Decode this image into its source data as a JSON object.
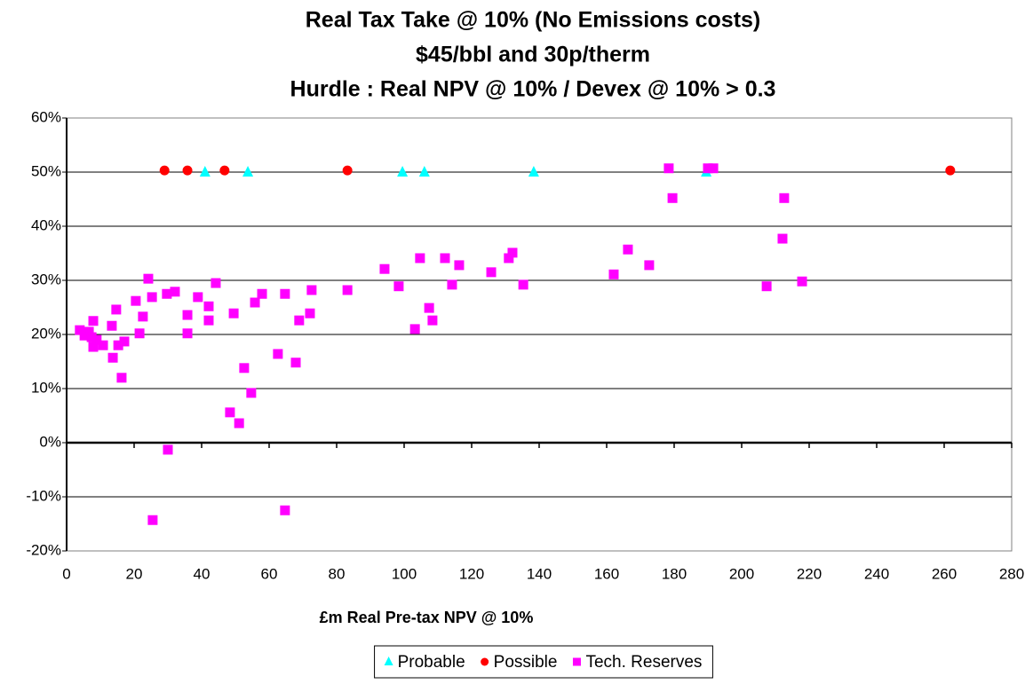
{
  "chart_data": {
    "type": "scatter",
    "title": [
      "Real Tax Take @ 10% (No Emissions costs)",
      "$45/bbl and 30p/therm",
      "Hurdle : Real NPV @ 10% / Devex @ 10% > 0.3"
    ],
    "x_label": "£m Real Pre-tax NPV @ 10%",
    "xlim": [
      0,
      280
    ],
    "xticks": [
      0,
      20,
      40,
      60,
      80,
      100,
      120,
      140,
      160,
      180,
      200,
      220,
      240,
      260,
      280
    ],
    "ylim": [
      -20,
      60
    ],
    "yticks": [
      {
        "value": -20,
        "label": "-20%"
      },
      {
        "value": -10,
        "label": "-10%"
      },
      {
        "value": 0,
        "label": "0%"
      },
      {
        "value": 10,
        "label": "10%"
      },
      {
        "value": 20,
        "label": "20%"
      },
      {
        "value": 30,
        "label": "30%"
      },
      {
        "value": 40,
        "label": "40%"
      },
      {
        "value": 50,
        "label": "50%"
      },
      {
        "value": 60,
        "label": "60%"
      }
    ],
    "grid": true,
    "legend": "bottom",
    "series": [
      {
        "name": "Probable",
        "color": "#00ffff",
        "marker": "triangle",
        "x": [
          41,
          53.7,
          99.5,
          106,
          138.4,
          189.5
        ],
        "values": [
          50,
          50,
          50,
          50,
          50,
          50
        ]
      },
      {
        "name": "Possible",
        "color": "#ff0000",
        "marker": "circle",
        "x": [
          29,
          35.8,
          46.8,
          83.2,
          261.8
        ],
        "values": [
          50.3,
          50.3,
          50.3,
          50.3,
          50.3
        ]
      },
      {
        "name": "Tech. Reserves",
        "color": "#ff00ff",
        "marker": "square",
        "x": [
          3.9,
          5.3,
          6.6,
          7.4,
          7.9,
          7.9,
          8.9,
          10.8,
          13.4,
          13.7,
          14.7,
          15.3,
          16.3,
          17.1,
          20.5,
          21.6,
          22.6,
          24.2,
          25.3,
          25.5,
          29.7,
          30,
          32.1,
          35.8,
          35.8,
          38.9,
          42.1,
          42.1,
          44.2,
          48.4,
          49.5,
          51.1,
          52.6,
          54.7,
          55.8,
          57.9,
          62.6,
          64.7,
          64.7,
          67.9,
          68.9,
          72.1,
          72.6,
          83.2,
          94.2,
          98.4,
          103.2,
          104.7,
          107.4,
          108.4,
          112.1,
          114.2,
          116.3,
          125.8,
          131,
          132.1,
          135.3,
          162.1,
          166.3,
          172.6,
          178.4,
          179.5,
          190,
          191.6,
          207.4,
          212.1,
          212.6,
          217.9
        ],
        "values": [
          20.8,
          19.8,
          20.5,
          19.5,
          22.5,
          17.7,
          19,
          18,
          21.6,
          15.7,
          24.6,
          18,
          12,
          18.7,
          26.2,
          20.2,
          23.3,
          30.3,
          26.9,
          -14.3,
          27.5,
          -1.3,
          27.9,
          23.6,
          20.2,
          26.9,
          25.2,
          22.6,
          29.5,
          5.6,
          23.9,
          3.6,
          13.8,
          9.2,
          25.9,
          27.5,
          16.4,
          27.5,
          -12.5,
          14.8,
          22.6,
          23.9,
          28.2,
          28.2,
          32.1,
          28.9,
          21,
          34.1,
          24.9,
          22.6,
          34.1,
          29.2,
          32.8,
          31.5,
          34.1,
          35.1,
          29.2,
          31.1,
          35.7,
          32.8,
          50.7,
          45.2,
          50.7,
          50.7,
          28.9,
          37.7,
          45.2,
          29.8
        ]
      }
    ]
  }
}
